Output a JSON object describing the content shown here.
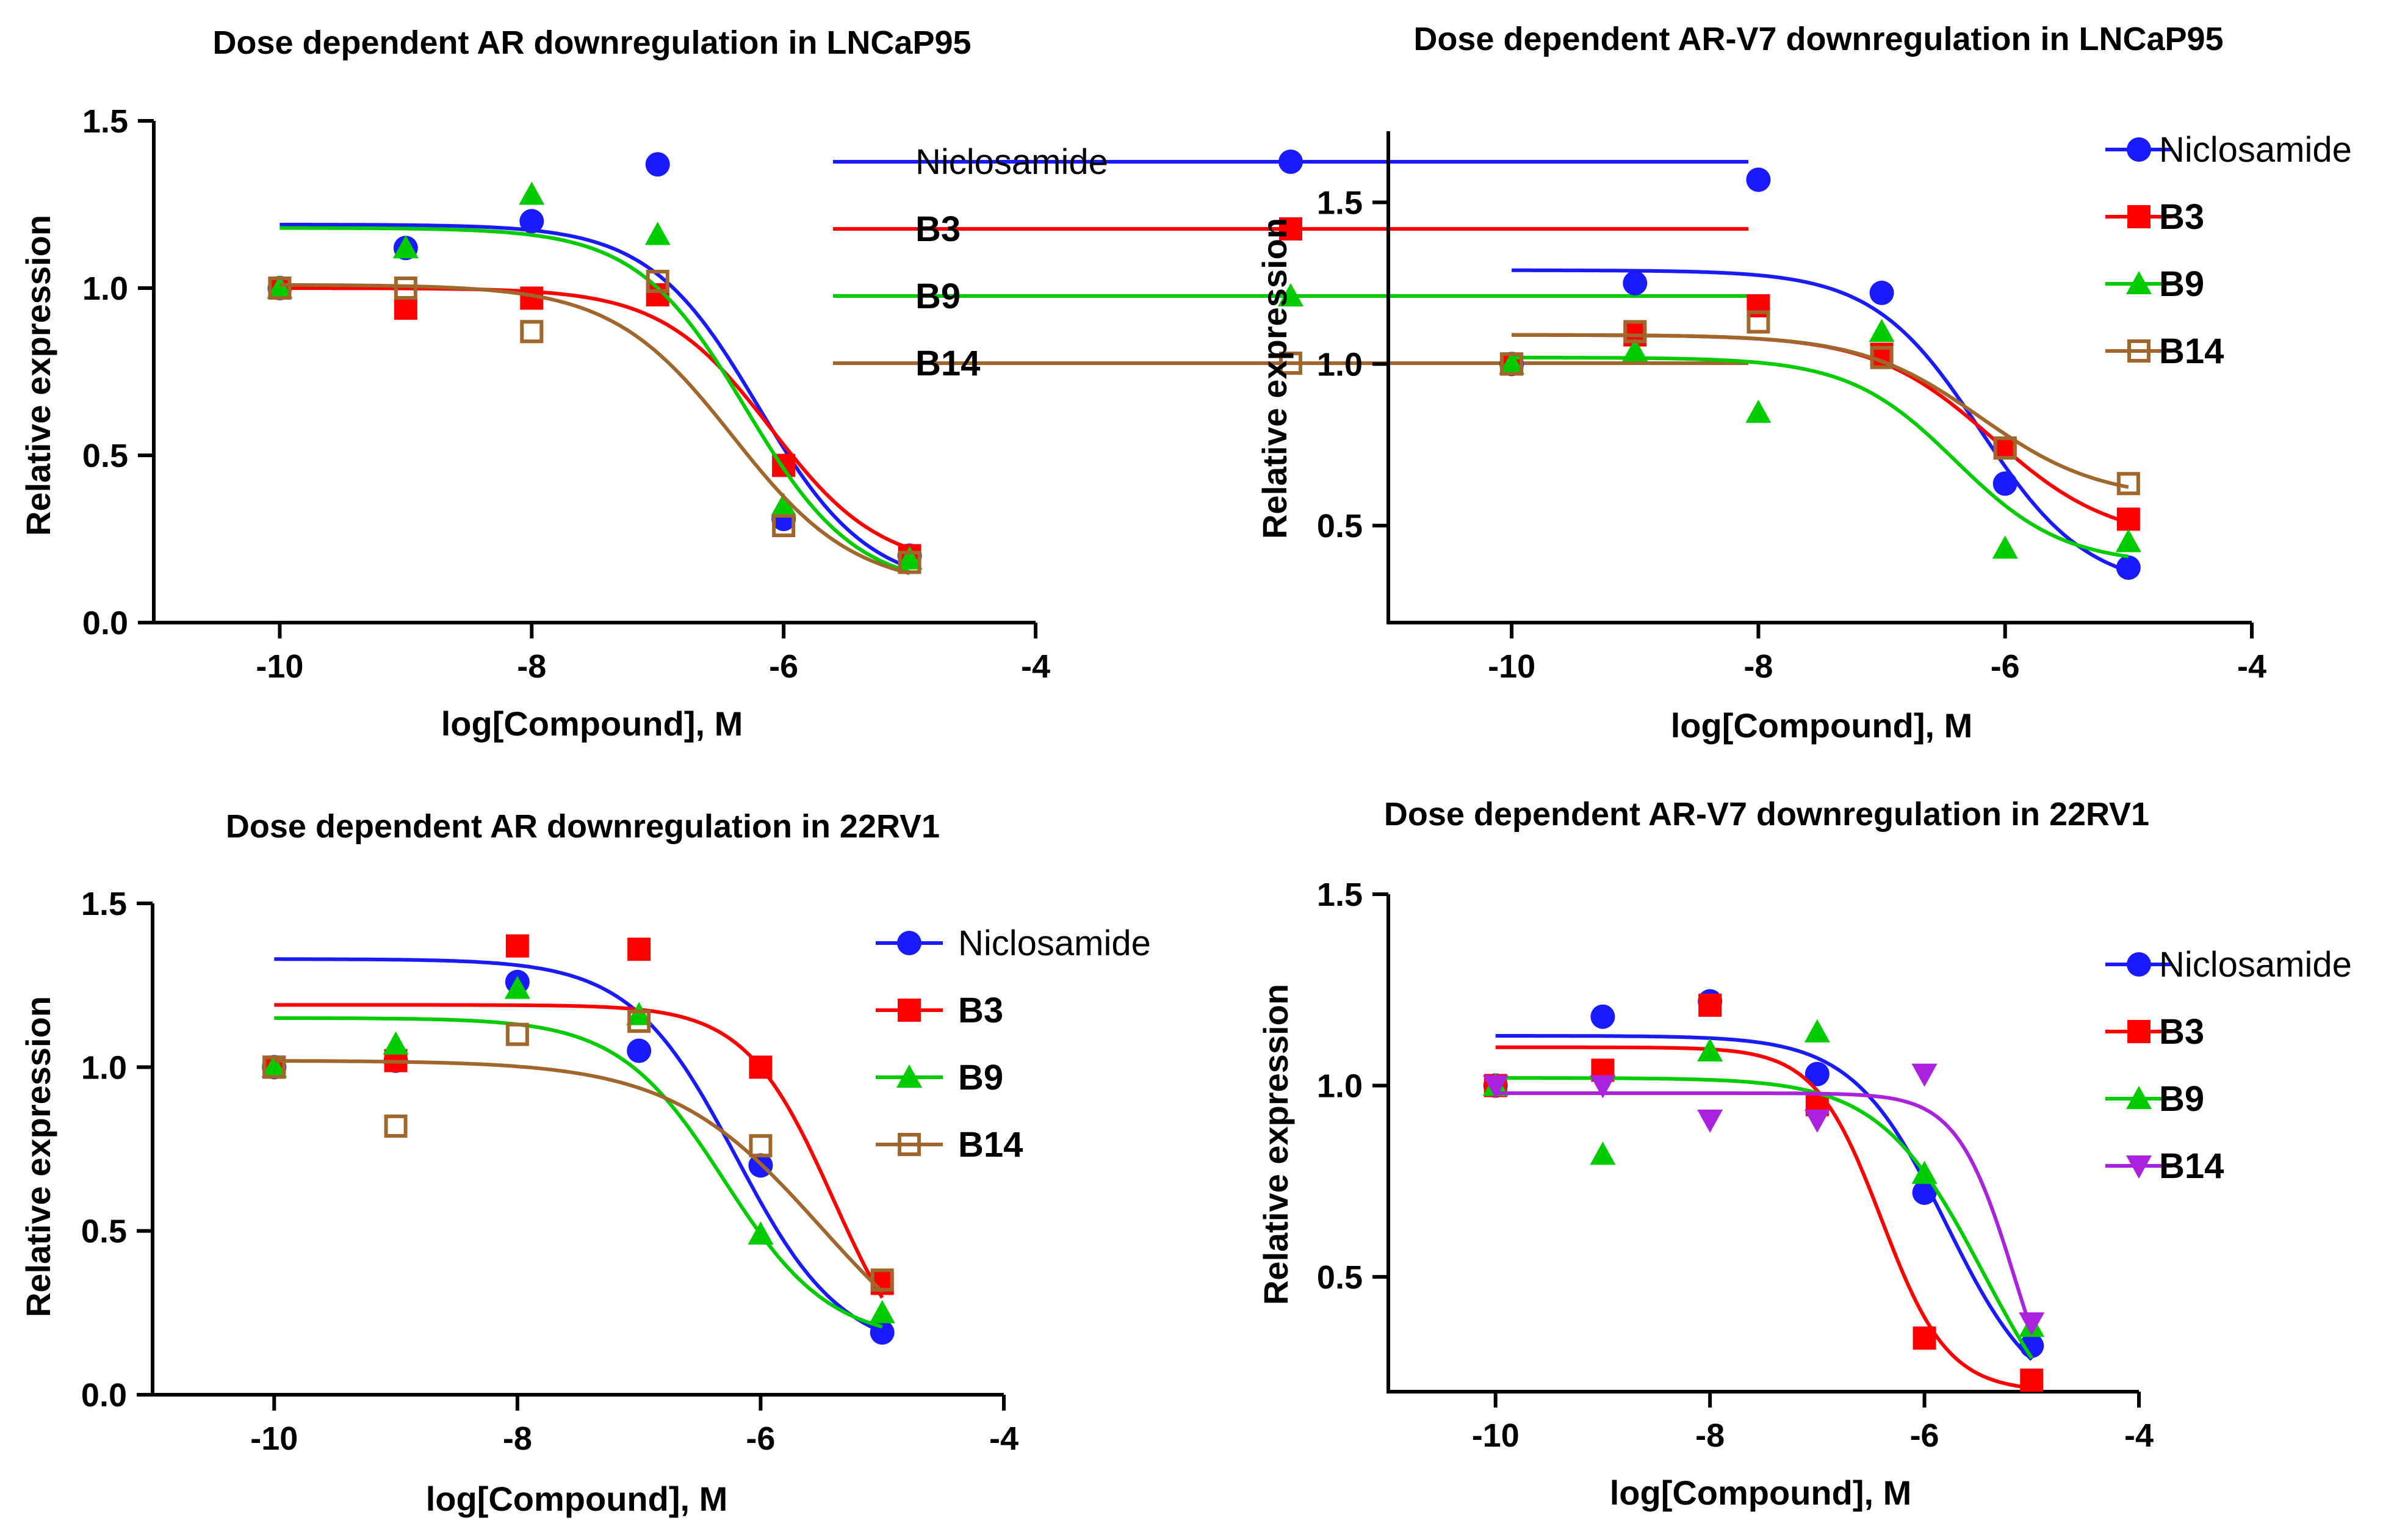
{
  "chart_data": [
    {
      "type": "scatter",
      "title": "Dose dependent AR downregulation in LNCaP95",
      "xlabel": "log[Compound], M",
      "ylabel": "Relative expression",
      "xlim": [
        -11,
        -4
      ],
      "ylim": [
        0,
        1.5
      ],
      "xticks": [
        -10,
        -8,
        -6,
        -4
      ],
      "yticks": [
        0.0,
        0.5,
        1.0,
        1.5
      ],
      "xtick_labels": [
        "-10",
        "-8",
        "-6",
        "-4"
      ],
      "ytick_labels": [
        "0.0",
        "0.5",
        "1.0",
        "1.5"
      ],
      "legend_position": "top-right",
      "series": [
        {
          "name": "Niclosamide",
          "color": "#1a1aff",
          "marker": "circle",
          "x": [
            -10,
            -9,
            -8,
            -7,
            -6,
            -5
          ],
          "y": [
            1.0,
            1.12,
            1.2,
            1.37,
            0.31,
            0.2
          ],
          "fit": {
            "top": 1.19,
            "bottom": 0.1,
            "logec50": -6.2,
            "hill": 1.0
          }
        },
        {
          "name": "B3",
          "color": "#ff0000",
          "marker": "square",
          "x": [
            -10,
            -9,
            -8,
            -7,
            -6,
            -5
          ],
          "y": [
            1.0,
            0.94,
            0.97,
            0.98,
            0.47,
            0.2
          ],
          "fit": {
            "top": 1.0,
            "bottom": 0.16,
            "logec50": -6.1,
            "hill": 1.0
          }
        },
        {
          "name": "B9",
          "color": "#00cc00",
          "marker": "triangle",
          "x": [
            -10,
            -9,
            -8,
            -7,
            -6,
            -5
          ],
          "y": [
            1.0,
            1.12,
            1.28,
            1.16,
            0.35,
            0.19
          ],
          "fit": {
            "top": 1.18,
            "bottom": 0.1,
            "logec50": -6.3,
            "hill": 1.0
          }
        },
        {
          "name": "B14",
          "color": "#a0662b",
          "marker": "open-square",
          "x": [
            -10,
            -9,
            -8,
            -7,
            -6,
            -5
          ],
          "y": [
            1.0,
            1.0,
            0.87,
            1.02,
            0.29,
            0.18
          ],
          "fit": {
            "top": 1.01,
            "bottom": 0.1,
            "logec50": -6.4,
            "hill": 0.9
          }
        }
      ]
    },
    {
      "type": "scatter",
      "title": "Dose dependent AR-V7 downregulation in LNCaP95",
      "xlabel": "log[Compound], M",
      "ylabel": "Relative expression",
      "xlim": [
        -11,
        -4
      ],
      "ylim": [
        0.2,
        1.72
      ],
      "xticks": [
        -10,
        -8,
        -6,
        -4
      ],
      "yticks": [
        0.5,
        1.0,
        1.5
      ],
      "xtick_labels": [
        "-10",
        "-8",
        "-6",
        "-4"
      ],
      "ytick_labels": [
        "0.5",
        "1.0",
        "1.5"
      ],
      "legend_position": "top-right",
      "series": [
        {
          "name": "Niclosamide",
          "color": "#1a1aff",
          "marker": "circle",
          "x": [
            -10,
            -9,
            -8,
            -7,
            -6,
            -5
          ],
          "y": [
            1.0,
            1.25,
            1.57,
            1.22,
            0.63,
            0.37
          ],
          "fit": {
            "top": 1.29,
            "bottom": 0.3,
            "logec50": -6.2,
            "hill": 1.0
          }
        },
        {
          "name": "B3",
          "color": "#ff0000",
          "marker": "square",
          "x": [
            -10,
            -9,
            -8,
            -7,
            -6,
            -5
          ],
          "y": [
            1.0,
            1.09,
            1.18,
            1.03,
            0.74,
            0.52
          ],
          "fit": {
            "top": 1.09,
            "bottom": 0.45,
            "logec50": -6.1,
            "hill": 0.9
          }
        },
        {
          "name": "B9",
          "color": "#00cc00",
          "marker": "triangle",
          "x": [
            -10,
            -9,
            -8,
            -7,
            -6,
            -5
          ],
          "y": [
            1.0,
            1.04,
            0.85,
            1.1,
            0.43,
            0.45
          ],
          "fit": {
            "top": 1.02,
            "bottom": 0.38,
            "logec50": -6.4,
            "hill": 1.0
          }
        },
        {
          "name": "B14",
          "color": "#a0662b",
          "marker": "open-square",
          "x": [
            -10,
            -9,
            -8,
            -7,
            -6,
            -5
          ],
          "y": [
            1.0,
            1.1,
            1.13,
            1.02,
            0.74,
            0.63
          ],
          "fit": {
            "top": 1.09,
            "bottom": 0.58,
            "logec50": -6.2,
            "hill": 0.9
          }
        }
      ]
    },
    {
      "type": "scatter",
      "title": "Dose dependent AR downregulation in 22RV1",
      "xlabel": "log[Compound], M",
      "ylabel": "Relative expression",
      "xlim": [
        -11,
        -4
      ],
      "ylim": [
        0,
        1.5
      ],
      "xticks": [
        -10,
        -8,
        -6,
        -4
      ],
      "yticks": [
        0.0,
        0.5,
        1.0,
        1.5
      ],
      "xtick_labels": [
        "-10",
        "-8",
        "-6",
        "-4"
      ],
      "ytick_labels": [
        "0.0",
        "0.5",
        "1.0",
        "1.5"
      ],
      "legend_position": "top-right",
      "series": [
        {
          "name": "Niclosamide",
          "color": "#1a1aff",
          "marker": "circle",
          "x": [
            -10,
            -9,
            -8,
            -7,
            -6,
            -5
          ],
          "y": [
            1.0,
            1.02,
            1.26,
            1.05,
            0.7,
            0.19
          ],
          "fit": {
            "top": 1.33,
            "bottom": 0.12,
            "logec50": -6.2,
            "hill": 1.0
          }
        },
        {
          "name": "B3",
          "color": "#ff0000",
          "marker": "square",
          "x": [
            -10,
            -9,
            -8,
            -7,
            -6,
            -5
          ],
          "y": [
            1.0,
            1.02,
            1.37,
            1.36,
            1.0,
            0.34
          ],
          "fit": {
            "top": 1.19,
            "bottom": 0.0,
            "logec50": -5.4,
            "hill": 1.2
          }
        },
        {
          "name": "B9",
          "color": "#00cc00",
          "marker": "triangle",
          "x": [
            -10,
            -9,
            -8,
            -7,
            -6,
            -5
          ],
          "y": [
            1.0,
            1.07,
            1.24,
            1.16,
            0.49,
            0.25
          ],
          "fit": {
            "top": 1.15,
            "bottom": 0.16,
            "logec50": -6.3,
            "hill": 1.0
          }
        },
        {
          "name": "B14",
          "color": "#a0662b",
          "marker": "open-square",
          "x": [
            -10,
            -9,
            -8,
            -7,
            -6,
            -5
          ],
          "y": [
            1.0,
            0.82,
            1.1,
            1.14,
            0.76,
            0.35
          ],
          "fit": {
            "top": 1.02,
            "bottom": 0.0,
            "logec50": -5.5,
            "hill": 0.7
          }
        }
      ]
    },
    {
      "type": "scatter",
      "title": "Dose dependent AR-V7 downregulation in 22RV1",
      "xlabel": "log[Compound], M",
      "ylabel": "Relative expression",
      "xlim": [
        -11,
        -4
      ],
      "ylim": [
        0.2,
        1.5
      ],
      "xticks": [
        -10,
        -8,
        -6,
        -4
      ],
      "yticks": [
        0.5,
        1.0,
        1.5
      ],
      "xtick_labels": [
        "-10",
        "-8",
        "-6",
        "-4"
      ],
      "ytick_labels": [
        "0.5",
        "1.0",
        "1.5"
      ],
      "legend_position": "top-right",
      "series": [
        {
          "name": "Niclosamide",
          "color": "#1a1aff",
          "marker": "circle",
          "x": [
            -10,
            -9,
            -8,
            -7,
            -6,
            -5
          ],
          "y": [
            1.0,
            1.18,
            1.22,
            1.03,
            0.72,
            0.32
          ],
          "fit": {
            "top": 1.13,
            "bottom": 0.15,
            "logec50": -5.8,
            "hill": 1.0
          }
        },
        {
          "name": "B3",
          "color": "#ff0000",
          "marker": "square",
          "x": [
            -10,
            -9,
            -8,
            -7,
            -6,
            -5
          ],
          "y": [
            1.0,
            1.04,
            1.21,
            0.95,
            0.34,
            0.23
          ],
          "fit": {
            "top": 1.1,
            "bottom": 0.2,
            "logec50": -6.4,
            "hill": 1.4
          }
        },
        {
          "name": "B9",
          "color": "#00cc00",
          "marker": "triangle",
          "x": [
            -10,
            -9,
            -8,
            -7,
            -6,
            -5
          ],
          "y": [
            1.0,
            0.82,
            1.09,
            1.14,
            0.77,
            0.37
          ],
          "fit": {
            "top": 1.02,
            "bottom": 0.0,
            "logec50": -5.45,
            "hill": 0.9
          }
        },
        {
          "name": "B14",
          "color": "#aa22dd",
          "marker": "triangle-down",
          "x": [
            -10,
            -9,
            -8,
            -7,
            -6,
            -5
          ],
          "y": [
            1.0,
            1.0,
            0.91,
            0.91,
            1.03,
            0.38
          ],
          "fit": {
            "top": 0.98,
            "bottom": 0.0,
            "logec50": -5.15,
            "hill": 1.6
          }
        }
      ]
    }
  ]
}
